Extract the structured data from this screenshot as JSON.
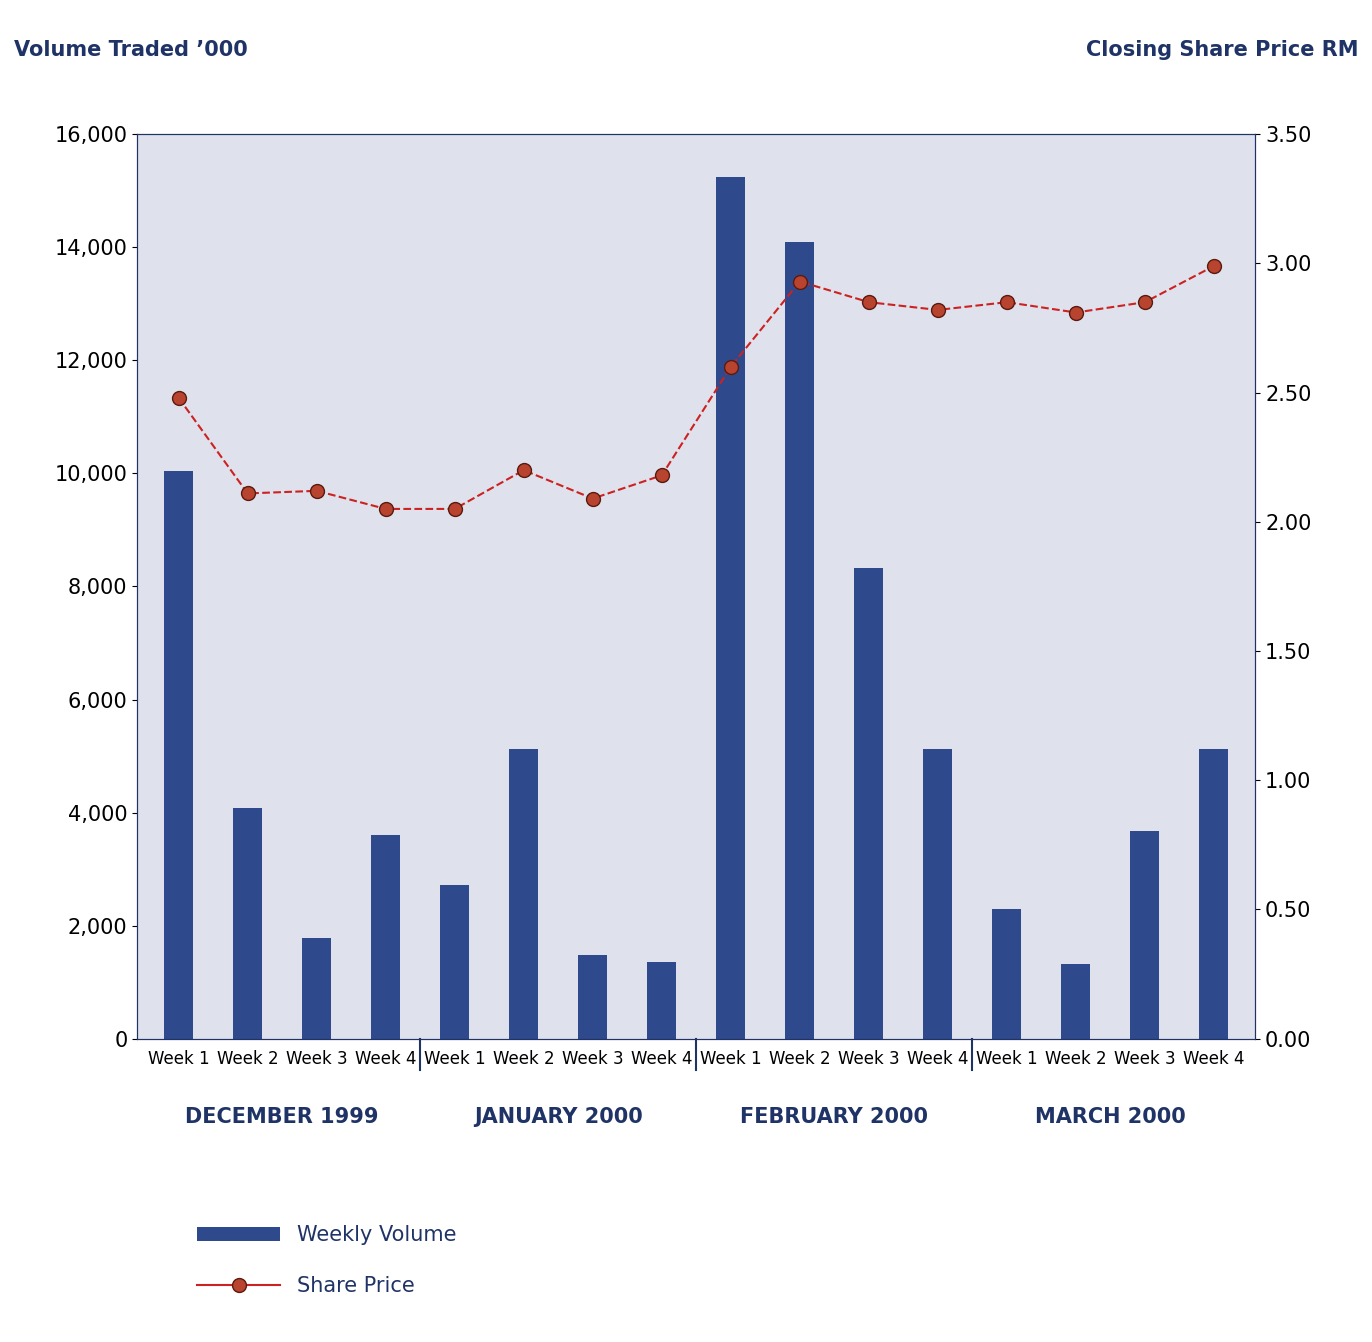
{
  "chart_data": {
    "type": "bar",
    "groups": [
      {
        "label": "DECEMBER 1999",
        "categories": [
          "Week 1",
          "Week 2",
          "Week 3",
          "Week 4"
        ]
      },
      {
        "label": "JANUARY 2000",
        "categories": [
          "Week 1",
          "Week 2",
          "Week 3",
          "Week 4"
        ]
      },
      {
        "label": "FEBRUARY 2000",
        "categories": [
          "Week 1",
          "Week 2",
          "Week 3",
          "Week 4"
        ]
      },
      {
        "label": "MARCH 2000",
        "categories": [
          "Week 1",
          "Week 2",
          "Week 3",
          "Week 4"
        ]
      }
    ],
    "y_label": "Volume Traded ’000",
    "y2_label": "Closing Share Price RM",
    "series": [
      {
        "name": "Weekly Volume",
        "type": "bar",
        "color": "#2e4a8c",
        "values": [
          10050,
          4080,
          1780,
          3600,
          2720,
          5130,
          1480,
          1350,
          15250,
          14100,
          8320,
          5130,
          2300,
          1330,
          3680,
          5130
        ]
      },
      {
        "name": "Share Price",
        "type": "line",
        "axis": "y2",
        "color": "#cc2222",
        "marker": "o",
        "line_style": "dashed",
        "values": [
          2.48,
          2.11,
          2.12,
          2.05,
          2.05,
          2.2,
          2.09,
          2.18,
          2.6,
          2.93,
          2.85,
          2.82,
          2.85,
          2.81,
          2.85,
          2.99
        ]
      }
    ],
    "ylim": [
      0,
      16000
    ],
    "yticks": [
      {
        "value": 0,
        "label": "0"
      },
      {
        "value": 2000,
        "label": "2,000"
      },
      {
        "value": 4000,
        "label": "4,000"
      },
      {
        "value": 6000,
        "label": "6,000"
      },
      {
        "value": 8000,
        "label": "8,000"
      },
      {
        "value": 10000,
        "label": "10,000"
      },
      {
        "value": 12000,
        "label": "12,000"
      },
      {
        "value": 14000,
        "label": "14,000"
      },
      {
        "value": 16000,
        "label": "16,000"
      }
    ],
    "y2lim": [
      0,
      3.5
    ],
    "y2ticks": [
      {
        "value": 0,
        "label": "0.00"
      },
      {
        "value": 0.5,
        "label": "0.50"
      },
      {
        "value": 1.0,
        "label": "1.00"
      },
      {
        "value": 1.5,
        "label": "1.50"
      },
      {
        "value": 2.0,
        "label": "2.00"
      },
      {
        "value": 2.5,
        "label": "2.50"
      },
      {
        "value": 3.0,
        "label": "3.00"
      },
      {
        "value": 3.5,
        "label": "3.50"
      }
    ],
    "grid": false,
    "legend": "lower left"
  }
}
